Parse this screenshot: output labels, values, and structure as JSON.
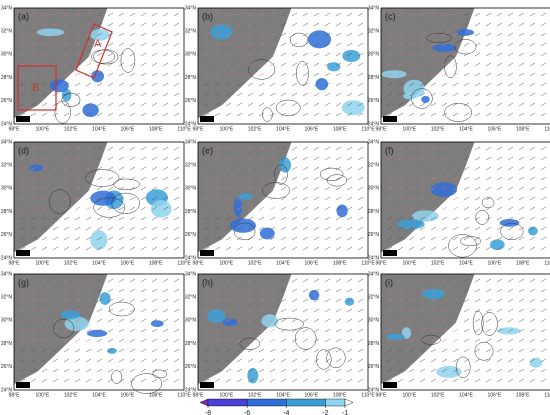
{
  "panels": [
    "(a)",
    "(b)",
    "(c)",
    "(d)",
    "(e)",
    "(f)",
    "(g)",
    "(h)",
    "(i)"
  ],
  "lat_ticks": [
    "24°N",
    "26°N",
    "28°N",
    "30°N",
    "32°N",
    "34°N"
  ],
  "lon_ticks": [
    "98°E",
    "100°E",
    "102°E",
    "104°E",
    "106°E",
    "108°E",
    "110°E"
  ],
  "boxes": [
    "A",
    "B"
  ],
  "colorbar": {
    "ticks": [
      -8,
      -6,
      -4,
      -2,
      -1
    ],
    "colors": [
      "#7a2cc4",
      "#4b3fd6",
      "#2f6fd8",
      "#3a9fd8",
      "#8fd4ee"
    ]
  }
}
